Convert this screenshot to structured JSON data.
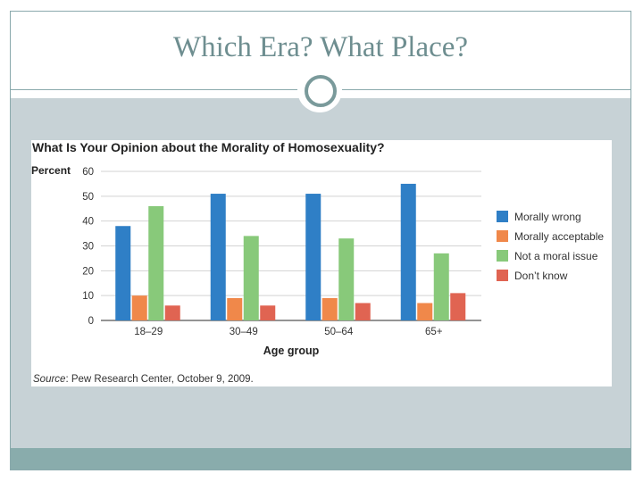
{
  "slide": {
    "title": "Which Era? What Place?"
  },
  "chart_data": {
    "type": "bar",
    "title": "What Is Your Opinion about the Morality of Homosexuality?",
    "ylabel": "Percent",
    "xlabel": "Age group",
    "ylim": [
      0,
      60
    ],
    "yticks": [
      0,
      10,
      20,
      30,
      40,
      50,
      60
    ],
    "grid": true,
    "legend_position": "right",
    "categories": [
      "18–29",
      "30–49",
      "50–64",
      "65+"
    ],
    "series": [
      {
        "name": "Morally wrong",
        "color": "#2f7fc6",
        "values": [
          38,
          51,
          51,
          55
        ]
      },
      {
        "name": "Morally acceptable",
        "color": "#f0884a",
        "values": [
          10,
          9,
          9,
          7
        ]
      },
      {
        "name": "Not a moral issue",
        "color": "#88c97a",
        "values": [
          46,
          34,
          33,
          27
        ]
      },
      {
        "name": "Don’t know",
        "color": "#e06452",
        "values": [
          6,
          6,
          7,
          11
        ]
      }
    ],
    "source_label": "Source",
    "source_text": ": Pew Research Center, October 9, 2009."
  }
}
